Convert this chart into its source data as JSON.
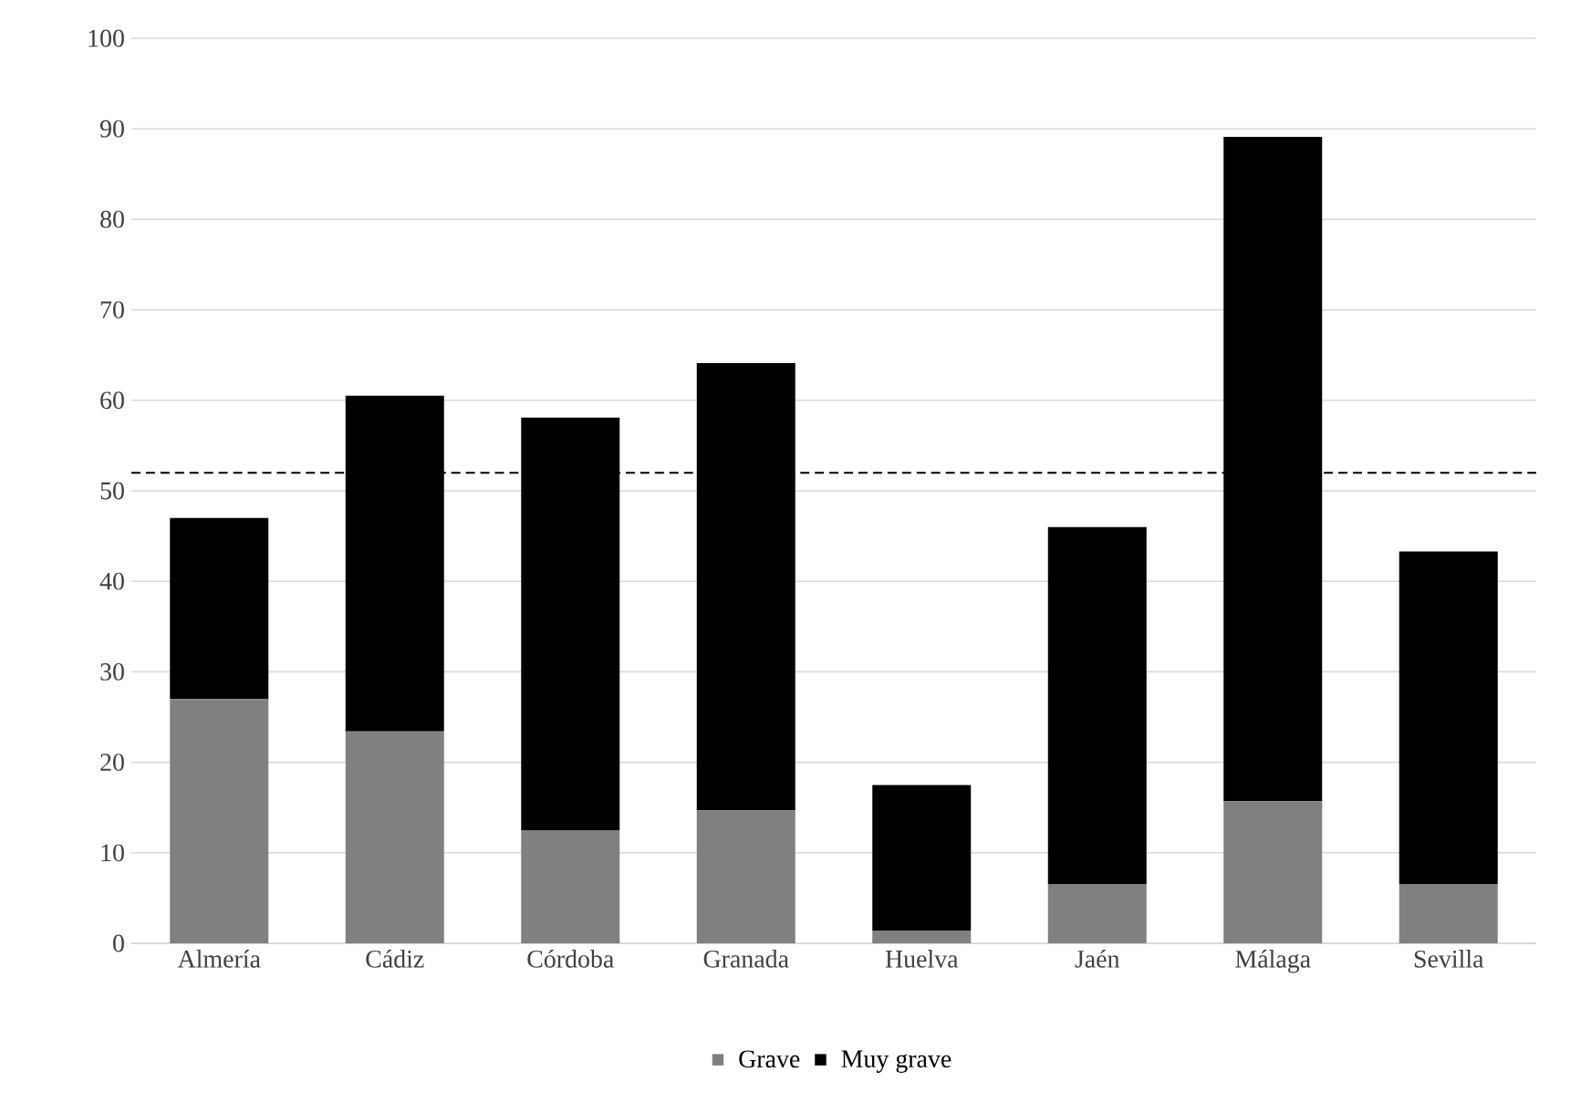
{
  "chart_data": {
    "type": "bar",
    "stacked": true,
    "categories": [
      "Almería",
      "Cádiz",
      "Córdoba",
      "Granada",
      "Huelva",
      "Jaén",
      "Málaga",
      "Sevilla"
    ],
    "series": [
      {
        "name": "Grave",
        "color": "#808080",
        "values": [
          27,
          23.4,
          12.5,
          14.7,
          1.4,
          6.5,
          15.7,
          6.5
        ]
      },
      {
        "name": "Muy grave",
        "color": "#000000",
        "values": [
          20,
          37.1,
          45.6,
          49.4,
          16.1,
          39.5,
          73.4,
          36.8
        ]
      }
    ],
    "ylim": [
      0,
      100
    ],
    "yticks": [
      0,
      10,
      20,
      30,
      40,
      50,
      60,
      70,
      80,
      90,
      100
    ],
    "grid": "y",
    "legend": "bottom",
    "ref_lines": [
      {
        "axis": "y",
        "value": 52,
        "color": "#000000",
        "line_style": "dashed"
      }
    ]
  }
}
